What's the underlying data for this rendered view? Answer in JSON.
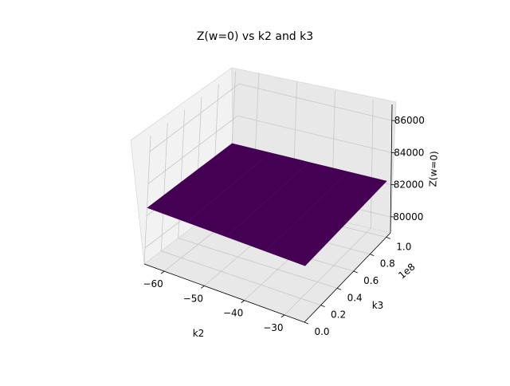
{
  "chart_data": {
    "type": "surface3d",
    "title": "Z(w=0) vs k2 and k3",
    "xlabel": "k2",
    "ylabel": "k3",
    "zlabel": "Z(w=0)",
    "y_offset_label": "1e8",
    "x_ticks": [
      "−60",
      "−50",
      "−40",
      "−30"
    ],
    "y_ticks": [
      "0.0",
      "0.2",
      "0.4",
      "0.6",
      "0.8",
      "1.0"
    ],
    "z_ticks": [
      "80000",
      "82000",
      "84000",
      "86000"
    ],
    "xlim": [
      -65,
      -25
    ],
    "ylim": [
      0.0,
      105000000.0
    ],
    "zlim": [
      79000,
      87000
    ],
    "surface": {
      "x": [
        -65,
        -25
      ],
      "y": [
        0.0,
        100000000.0
      ],
      "z_approx": 82500,
      "color": "#440154",
      "edge_color": "#ffffff"
    },
    "grid": true,
    "pane_color": "#f2f2f2",
    "grid_color": "#c8c8c8"
  }
}
